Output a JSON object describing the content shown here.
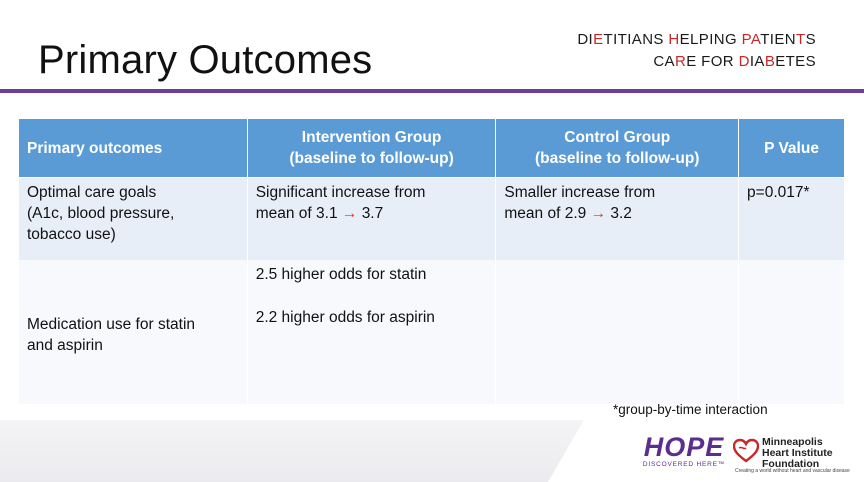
{
  "title": "Primary Outcomes",
  "brand": {
    "line1": [
      {
        "text": "DI",
        "hl": false
      },
      {
        "text": "E",
        "hl": true
      },
      {
        "text": "TITIANS ",
        "hl": false
      },
      {
        "text": "H",
        "hl": true
      },
      {
        "text": "ELPING ",
        "hl": false
      },
      {
        "text": "PA",
        "hl": true
      },
      {
        "text": "TIEN",
        "hl": false
      },
      {
        "text": "T",
        "hl": true
      },
      {
        "text": "S",
        "hl": false
      }
    ],
    "line2": [
      {
        "text": "CA",
        "hl": false
      },
      {
        "text": "R",
        "hl": true
      },
      {
        "text": "E FOR ",
        "hl": false
      },
      {
        "text": "D",
        "hl": true
      },
      {
        "text": "IA",
        "hl": false
      },
      {
        "text": "B",
        "hl": true
      },
      {
        "text": "ETES",
        "hl": false
      }
    ],
    "highlight_color": "#c62828"
  },
  "table": {
    "headers": {
      "col1": "Primary outcomes",
      "col2_line1": "Intervention Group",
      "col2_line2": "(baseline to follow-up)",
      "col3_line1": "Control Group",
      "col3_line2": "(baseline to follow-up)",
      "col4": "P Value"
    },
    "row1": {
      "outcome_line1": "Optimal care goals",
      "outcome_line2": "(A1c, blood pressure,",
      "outcome_line3": "tobacco use)",
      "intervention_line1": "Significant increase from",
      "intervention_prefix": "mean of 3.1",
      "intervention_to": "3.7",
      "control_line1": "Smaller increase from",
      "control_prefix": "mean of 2.9",
      "control_to": "3.2",
      "p_value": "p=0.017*"
    },
    "row2": {
      "outcome_line1": "Medication use for statin",
      "outcome_line2": "and aspirin",
      "intervention_line1": "2.5 higher odds for statin",
      "intervention_line2": "2.2 higher odds for aspirin",
      "control": "",
      "p_value": ""
    },
    "arrow_glyph": "→",
    "header_color": "#5b9bd5",
    "arrow_color": "#e0321b"
  },
  "footnote": "*group-by-time interaction",
  "footer": {
    "hope_word": "HOPE",
    "hope_tagline": "DISCOVERED HERE™",
    "mhif_line1": "Minneapolis",
    "mhif_line2": "Heart Institute",
    "mhif_line3": "Foundation",
    "mhif_tagline": "Creating a world without heart and vascular disease",
    "accent_purple": "#5b2d8e",
    "accent_red": "#c62828"
  },
  "divider_color": "#6f3d9a"
}
